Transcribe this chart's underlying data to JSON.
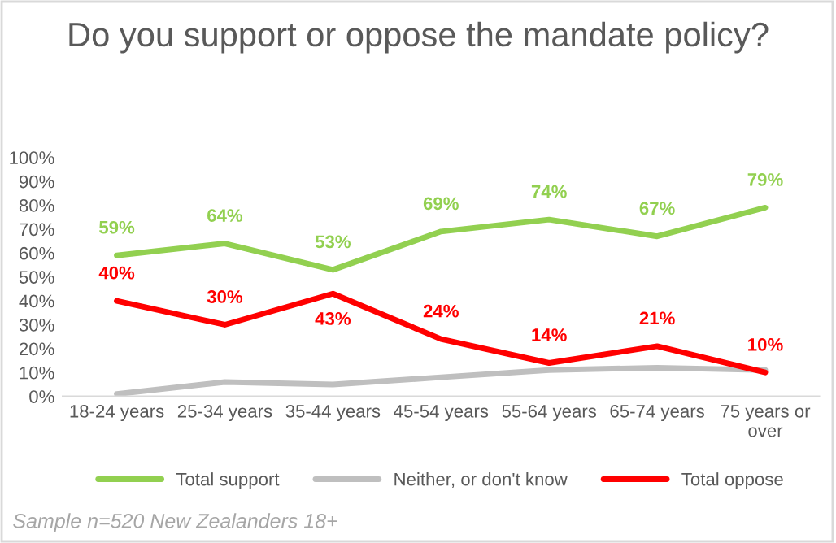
{
  "chart_data": {
    "type": "line",
    "title": "Do you support or oppose the mandate policy?",
    "categories": [
      "18-24 years",
      "25-34 years",
      "35-44 years",
      "45-54 years",
      "55-64 years",
      "65-74 years",
      "75 years or over"
    ],
    "series": [
      {
        "name": "Total support",
        "color": "#92d050",
        "values": [
          59,
          64,
          53,
          69,
          74,
          67,
          79
        ],
        "value_labels": [
          "59%",
          "64%",
          "53%",
          "69%",
          "74%",
          "67%",
          "79%"
        ]
      },
      {
        "name": "Neither, or don't know",
        "color": "#bfbfbf",
        "values": [
          1,
          6,
          5,
          8,
          11,
          12,
          11
        ]
      },
      {
        "name": "Total oppose",
        "color": "#ff0000",
        "values": [
          40,
          30,
          43,
          24,
          14,
          21,
          10
        ],
        "value_labels": [
          "40%",
          "30%",
          "43%",
          "24%",
          "14%",
          "21%",
          "10%"
        ]
      }
    ],
    "ylim": [
      0,
      100
    ],
    "yticks": [
      {
        "value": 0,
        "label": "0%"
      },
      {
        "value": 10,
        "label": "10%"
      },
      {
        "value": 20,
        "label": "20%"
      },
      {
        "value": 30,
        "label": "30%"
      },
      {
        "value": 40,
        "label": "40%"
      },
      {
        "value": 50,
        "label": "50%"
      },
      {
        "value": 60,
        "label": "60%"
      },
      {
        "value": 70,
        "label": "70%"
      },
      {
        "value": 80,
        "label": "80%"
      },
      {
        "value": 90,
        "label": "90%"
      },
      {
        "value": 100,
        "label": "100%"
      }
    ],
    "grid": false,
    "legend": "bottom",
    "marker": "none",
    "line_style": "solid",
    "annotations": [
      "Sample n=520 New Zealanders 18+"
    ]
  }
}
